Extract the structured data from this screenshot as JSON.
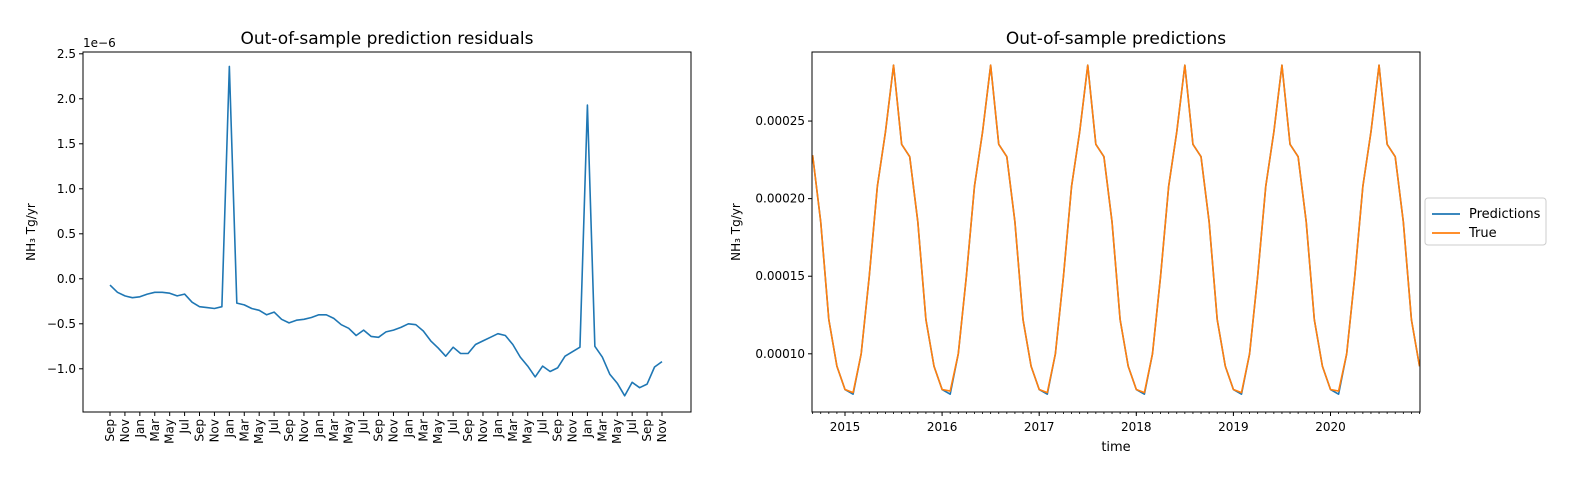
{
  "charts": [
    {
      "type": "line",
      "title": "Out-of-sample prediction residuals",
      "xlabel": "",
      "ylabel": "NH₃ Tg/yr",
      "y_offset_label": "1e−6",
      "ylim": [
        -1.48,
        2.52
      ],
      "yticks": [
        2.5,
        2.0,
        1.5,
        1.0,
        0.5,
        0.0,
        -0.5,
        -1.0
      ],
      "ytick_labels": [
        "2.5",
        "2.0",
        "1.5",
        "1.0",
        "0.5",
        "0.0",
        "−0.5",
        "−1.0"
      ],
      "x_tick_labels": [
        "Sep",
        "Nov",
        "Jan",
        "Mar",
        "May",
        "Jul",
        "Sep",
        "Nov",
        "Jan",
        "Mar",
        "May",
        "Jul",
        "Sep",
        "Nov",
        "Jan",
        "Mar",
        "May",
        "Jul",
        "Sep",
        "Nov",
        "Jan",
        "Mar",
        "May",
        "Jul",
        "Sep",
        "Nov",
        "Jan",
        "Mar",
        "May",
        "Jul",
        "Sep",
        "Nov",
        "Jan",
        "Mar",
        "May",
        "Jul",
        "Sep",
        "Nov"
      ],
      "line_color": "#1f77b4",
      "series": [
        {
          "values": [
            -0.07,
            -0.15,
            -0.19,
            -0.21,
            -0.2,
            -0.17,
            -0.15,
            -0.15,
            -0.16,
            -0.19,
            -0.17,
            -0.26,
            -0.31,
            -0.32,
            -0.33,
            -0.31,
            2.36,
            -0.27,
            -0.29,
            -0.33,
            -0.35,
            -0.4,
            -0.37,
            -0.45,
            -0.49,
            -0.46,
            -0.45,
            -0.43,
            -0.4,
            -0.4,
            -0.44,
            -0.51,
            -0.55,
            -0.63,
            -0.57,
            -0.64,
            -0.65,
            -0.59,
            -0.57,
            -0.54,
            -0.5,
            -0.51,
            -0.58,
            -0.69,
            -0.77,
            -0.86,
            -0.76,
            -0.83,
            -0.83,
            -0.73,
            -0.69,
            -0.65,
            -0.61,
            -0.63,
            -0.73,
            -0.87,
            -0.97,
            -1.09,
            -0.97,
            -1.03,
            -0.99,
            -0.86,
            -0.81,
            -0.76,
            1.93,
            -0.75,
            -0.87,
            -1.06,
            -1.16,
            -1.3,
            -1.15,
            -1.21,
            -1.17,
            -0.98,
            -0.92
          ]
        }
      ]
    },
    {
      "type": "line",
      "title": "Out-of-sample predictions",
      "xlabel": "time",
      "ylabel": "NH₃ Tg/yr",
      "ylim": [
        6.25e-05,
        0.0002945
      ],
      "yticks": [
        0.00025,
        0.0002,
        0.00015,
        0.0001
      ],
      "ytick_labels": [
        "0.00025",
        "0.00020",
        "0.00015",
        "0.00010"
      ],
      "x_tick_labels": [
        "2015",
        "2016",
        "2017",
        "2018",
        "2019",
        "2020"
      ],
      "legend": {
        "placement": "outside-right",
        "entries": [
          "Predictions",
          "True"
        ]
      },
      "series": [
        {
          "name": "Predictions",
          "color": "#1f77b4",
          "values": [
            0.000228,
            0.000185,
            0.000122,
            9.2e-05,
            7.7e-05,
            7.4e-05,
            0.0001,
            0.00015,
            0.000208,
            0.000243,
            0.000286,
            0.000235,
            0.000227,
            0.000185,
            0.000122,
            9.2e-05,
            7.7e-05,
            7.4e-05,
            0.0001,
            0.00015,
            0.000208,
            0.000243,
            0.000286,
            0.000235,
            0.000227,
            0.000185,
            0.000122,
            9.2e-05,
            7.7e-05,
            7.4e-05,
            0.0001,
            0.00015,
            0.000208,
            0.000243,
            0.000286,
            0.000235,
            0.000227,
            0.000185,
            0.000122,
            9.2e-05,
            7.7e-05,
            7.4e-05,
            0.0001,
            0.00015,
            0.000208,
            0.000243,
            0.000286,
            0.000235,
            0.000227,
            0.000185,
            0.000122,
            9.2e-05,
            7.7e-05,
            7.4e-05,
            0.0001,
            0.00015,
            0.000208,
            0.000243,
            0.000286,
            0.000235,
            0.000227,
            0.000185,
            0.000122,
            9.2e-05,
            7.7e-05,
            7.4e-05,
            0.0001,
            0.00015,
            0.000208,
            0.000243,
            0.000286,
            0.000235,
            0.000227,
            0.000185,
            0.000122,
            9.2e-05
          ]
        },
        {
          "name": "True",
          "color": "#ff7f0e",
          "values": [
            0.000228,
            0.000185,
            0.000122,
            9.2e-05,
            7.7e-05,
            7.5e-05,
            0.0001,
            0.00015,
            0.000208,
            0.000243,
            0.000286,
            0.000235,
            0.000227,
            0.000185,
            0.000122,
            9.2e-05,
            7.7e-05,
            7.6e-05,
            0.0001,
            0.00015,
            0.000208,
            0.000243,
            0.000286,
            0.000235,
            0.000227,
            0.000185,
            0.000122,
            9.2e-05,
            7.7e-05,
            7.5e-05,
            0.0001,
            0.00015,
            0.000208,
            0.000243,
            0.000286,
            0.000235,
            0.000227,
            0.000185,
            0.000122,
            9.2e-05,
            7.7e-05,
            7.5e-05,
            0.0001,
            0.00015,
            0.000208,
            0.000243,
            0.000286,
            0.000235,
            0.000227,
            0.000185,
            0.000122,
            9.2e-05,
            7.7e-05,
            7.5e-05,
            0.0001,
            0.00015,
            0.000208,
            0.000243,
            0.000286,
            0.000235,
            0.000227,
            0.000185,
            0.000122,
            9.2e-05,
            7.7e-05,
            7.6e-05,
            0.0001,
            0.00015,
            0.000208,
            0.000243,
            0.000286,
            0.000235,
            0.000227,
            0.000185,
            0.000122,
            9.2e-05
          ]
        }
      ]
    }
  ]
}
